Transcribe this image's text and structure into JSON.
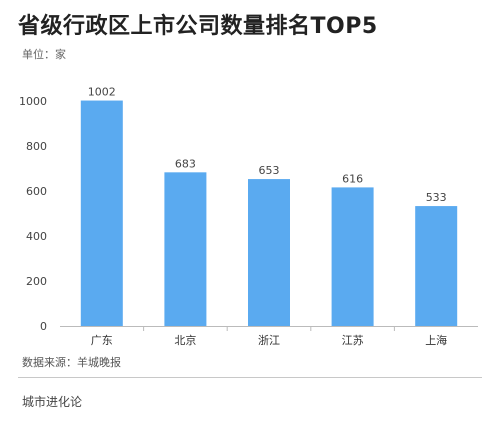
{
  "title": "省级行政区上市公司数量排名TOP5",
  "unit": "单位：家",
  "source": "数据来源：羊城晚报",
  "footer": "城市进化论",
  "colors": {
    "bar": "#5aaaf0",
    "axis": "#bbbbbb"
  },
  "chart_data": {
    "type": "bar",
    "categories": [
      "广东",
      "北京",
      "浙江",
      "江苏",
      "上海"
    ],
    "values": [
      1002,
      683,
      653,
      616,
      533
    ],
    "ylim": [
      0,
      1000
    ],
    "yticks": [
      0,
      200,
      400,
      600,
      800,
      1000
    ],
    "grid": false,
    "data_labels": true
  }
}
